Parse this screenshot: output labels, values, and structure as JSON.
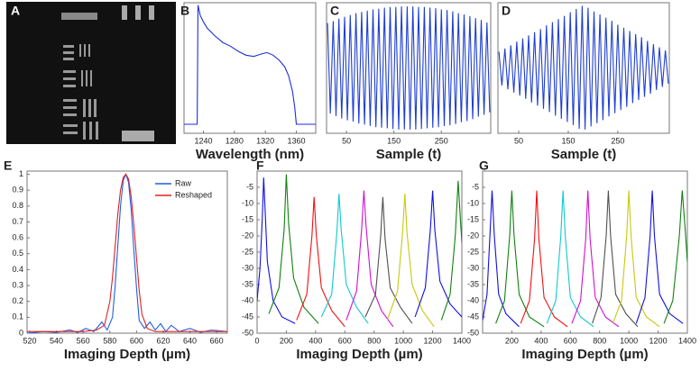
{
  "image_panel": {
    "label": "A"
  },
  "chart_data": [
    {
      "type": "line",
      "label": "B",
      "xlabel": "Wavelength (nm)",
      "xlim": [
        1215,
        1385
      ],
      "ylim": [
        0,
        1.02
      ],
      "xticks": [
        1240,
        1280,
        1320,
        1360
      ],
      "series": [
        {
          "color": "#1f2fd6",
          "x": [
            1215,
            1225,
            1232,
            1233,
            1236,
            1240,
            1245,
            1255,
            1265,
            1275,
            1285,
            1295,
            1305,
            1315,
            1322,
            1330,
            1338,
            1345,
            1350,
            1355,
            1358,
            1360,
            1370,
            1385
          ],
          "values": [
            0.07,
            0.07,
            0.07,
            1,
            0.92,
            0.87,
            0.82,
            0.76,
            0.71,
            0.68,
            0.64,
            0.61,
            0.6,
            0.62,
            0.63,
            0.61,
            0.57,
            0.52,
            0.45,
            0.33,
            0.2,
            0.07,
            0.07,
            0.07
          ]
        }
      ]
    },
    {
      "type": "line",
      "label": "C",
      "xlabel": "Sample (t)",
      "xlim": [
        8,
        354
      ],
      "ylim": [
        -1.06,
        1.06
      ],
      "xticks": [
        50,
        150,
        250
      ],
      "series": [
        {
          "color": "#1f3fd0",
          "x": [
            10,
            16,
            22,
            28,
            34,
            40,
            46,
            52,
            58,
            64,
            70,
            76,
            82,
            88,
            94,
            100,
            106,
            112,
            118,
            124,
            130,
            136,
            142,
            148,
            154,
            160,
            166,
            172,
            178,
            184,
            190,
            196,
            202,
            208,
            214,
            220,
            226,
            232,
            238,
            244,
            250,
            256,
            262,
            268,
            274,
            280,
            286,
            292,
            298,
            304,
            310,
            316,
            322,
            328,
            334,
            340,
            346,
            352
          ],
          "values": [
            0.73,
            -0.74,
            0.76,
            -0.78,
            0.8,
            -0.82,
            0.83,
            -0.85,
            0.86,
            -0.87,
            0.89,
            -0.9,
            0.91,
            -0.92,
            0.93,
            -0.94,
            0.95,
            -0.96,
            0.96,
            -0.97,
            0.98,
            -0.98,
            0.99,
            -0.99,
            0.99,
            -1,
            1,
            -1,
            1,
            -1,
            1,
            -1,
            0.99,
            -0.99,
            0.99,
            -0.98,
            0.98,
            -0.97,
            0.97,
            -0.96,
            0.95,
            -0.94,
            0.94,
            -0.93,
            0.92,
            -0.91,
            0.89,
            -0.88,
            0.87,
            -0.86,
            0.84,
            -0.83,
            0.81,
            -0.79,
            0.78,
            -0.76,
            0.74,
            -0.72
          ]
        }
      ]
    },
    {
      "type": "line",
      "label": "D",
      "xlabel": "Sample (t)",
      "xlim": [
        8,
        354
      ],
      "ylim": [
        -1.04,
        1.04
      ],
      "xticks": [
        50,
        150,
        250
      ],
      "series": [
        {
          "color": "#1f3fd0",
          "x": [
            10,
            16,
            22,
            28,
            34,
            40,
            46,
            52,
            58,
            64,
            70,
            76,
            82,
            88,
            94,
            100,
            106,
            112,
            118,
            124,
            130,
            136,
            142,
            148,
            154,
            160,
            166,
            172,
            178,
            184,
            190,
            196,
            202,
            208,
            214,
            220,
            226,
            232,
            238,
            244,
            250,
            256,
            262,
            268,
            274,
            280,
            286,
            292,
            298,
            304,
            310,
            316,
            322,
            328,
            334,
            340,
            346,
            352
          ],
          "values": [
            0.26,
            -0.28,
            0.31,
            -0.34,
            0.36,
            -0.39,
            0.42,
            -0.44,
            0.47,
            -0.49,
            0.52,
            -0.55,
            0.57,
            -0.6,
            0.62,
            -0.65,
            0.68,
            -0.7,
            0.73,
            -0.76,
            0.78,
            -0.81,
            0.83,
            -0.86,
            0.89,
            -0.91,
            0.94,
            -0.97,
            0.99,
            -0.98,
            0.96,
            -0.93,
            0.9,
            -0.88,
            0.85,
            -0.83,
            0.8,
            -0.77,
            0.75,
            -0.72,
            0.69,
            -0.67,
            0.64,
            -0.62,
            0.59,
            -0.56,
            0.54,
            -0.51,
            0.49,
            -0.46,
            0.43,
            -0.41,
            0.38,
            -0.35,
            0.33,
            -0.3,
            0.28,
            -0.25
          ]
        }
      ]
    },
    {
      "type": "line",
      "label": "E",
      "xlabel": "Imaging Depth (µm)",
      "xlim": [
        518,
        668
      ],
      "ylim": [
        0,
        1.02
      ],
      "xticks": [
        520,
        540,
        560,
        580,
        600,
        620,
        640,
        660
      ],
      "yticks": [
        0,
        0.1,
        0.2,
        0.3,
        0.4,
        0.5,
        0.6,
        0.7,
        0.8,
        0.9,
        1
      ],
      "legend": "upper right",
      "series": [
        {
          "name": "Raw",
          "color": "#1f5fe0",
          "x": [
            518,
            530,
            540,
            550,
            556,
            562,
            568,
            574,
            578,
            582,
            584,
            586,
            588,
            590,
            592,
            594,
            596,
            598,
            600,
            602,
            606,
            610,
            614,
            618,
            622,
            626,
            632,
            640,
            648,
            656,
            668
          ],
          "values": [
            0,
            0.01,
            0.005,
            0.02,
            0.005,
            0.03,
            0.01,
            0.07,
            0.02,
            0.1,
            0.3,
            0.55,
            0.8,
            0.96,
            1,
            0.95,
            0.78,
            0.52,
            0.28,
            0.08,
            0.03,
            0.07,
            0.02,
            0.06,
            0.01,
            0.05,
            0.01,
            0.03,
            0.005,
            0.02,
            0.01
          ]
        },
        {
          "name": "Reshaped",
          "color": "#e02020",
          "x": [
            518,
            560,
            570,
            576,
            580,
            582,
            584,
            586,
            588,
            590,
            592,
            594,
            596,
            598,
            600,
            602,
            604,
            608,
            614,
            668
          ],
          "values": [
            0.01,
            0.01,
            0.02,
            0.05,
            0.2,
            0.35,
            0.55,
            0.75,
            0.9,
            0.98,
            1,
            0.97,
            0.86,
            0.68,
            0.47,
            0.27,
            0.12,
            0.03,
            0.01,
            0.01
          ]
        }
      ]
    },
    {
      "type": "line",
      "label": "F",
      "xlabel": "Imaging Depth (µm)",
      "xlim": [
        0,
        1400
      ],
      "ylim": [
        -50,
        0
      ],
      "xticks": [
        0,
        200,
        400,
        600,
        800,
        1000,
        1200,
        1400
      ],
      "yticks": [
        -5,
        -10,
        -15,
        -20,
        -25,
        -30,
        -35,
        -40,
        -45,
        -50
      ],
      "series": [
        {
          "color": "#1010e0",
          "x": [
            0,
            20,
            35,
            45,
            55,
            70,
            110,
            170,
            260
          ],
          "values": [
            -40,
            -30,
            -15,
            -2,
            -12,
            -28,
            -40,
            -45,
            -47
          ]
        },
        {
          "color": "#108010",
          "x": [
            80,
            150,
            185,
            200,
            215,
            250,
            320,
            420
          ],
          "values": [
            -44,
            -36,
            -18,
            -1,
            -16,
            -33,
            -42,
            -47
          ]
        },
        {
          "color": "#f01010",
          "x": [
            270,
            340,
            375,
            390,
            405,
            440,
            510,
            600
          ],
          "values": [
            -46,
            -38,
            -20,
            -8,
            -20,
            -36,
            -43,
            -48
          ]
        },
        {
          "color": "#10c8d0",
          "x": [
            440,
            510,
            545,
            560,
            575,
            610,
            680,
            760
          ],
          "values": [
            -45,
            -38,
            -19,
            -7,
            -18,
            -35,
            -42,
            -47
          ]
        },
        {
          "color": "#d010d0",
          "x": [
            610,
            680,
            715,
            730,
            745,
            780,
            850,
            930
          ],
          "values": [
            -46,
            -37,
            -18,
            -6,
            -17,
            -35,
            -43,
            -48
          ]
        },
        {
          "color": "#505050",
          "x": [
            740,
            810,
            845,
            860,
            875,
            910,
            980,
            1060
          ],
          "values": [
            -45,
            -38,
            -20,
            -8,
            -21,
            -36,
            -42,
            -47
          ]
        },
        {
          "color": "#c8c810",
          "x": [
            890,
            960,
            995,
            1010,
            1025,
            1060,
            1130,
            1210
          ],
          "values": [
            -46,
            -37,
            -19,
            -7,
            -19,
            -35,
            -43,
            -48
          ]
        },
        {
          "color": "#1010e0",
          "x": [
            1080,
            1150,
            1185,
            1200,
            1215,
            1250,
            1320,
            1400
          ],
          "values": [
            -45,
            -36,
            -18,
            -6,
            -18,
            -34,
            -41,
            -45
          ]
        },
        {
          "color": "#108010",
          "x": [
            1260,
            1320,
            1355,
            1375,
            1390,
            1400
          ],
          "values": [
            -46,
            -38,
            -20,
            -3,
            -15,
            -22
          ]
        }
      ]
    },
    {
      "type": "line",
      "label": "G",
      "xlabel": "Imaging Depth (µm)",
      "xlim": [
        0,
        1400
      ],
      "ylim": [
        -50,
        0
      ],
      "xticks": [
        200,
        400,
        600,
        800,
        1000,
        1200,
        1400
      ],
      "yticks": [
        -5,
        -10,
        -15,
        -20,
        -25,
        -30,
        -35,
        -40,
        -45,
        -50
      ],
      "series": [
        {
          "color": "#1010e0",
          "x": [
            0,
            30,
            50,
            65,
            80,
            110,
            160,
            250
          ],
          "values": [
            -46,
            -38,
            -20,
            -6,
            -20,
            -38,
            -44,
            -48
          ]
        },
        {
          "color": "#108010",
          "x": [
            90,
            150,
            185,
            200,
            215,
            250,
            320,
            420
          ],
          "values": [
            -47,
            -40,
            -20,
            -6,
            -20,
            -38,
            -45,
            -48
          ]
        },
        {
          "color": "#f01010",
          "x": [
            260,
            320,
            355,
            370,
            385,
            420,
            490,
            580
          ],
          "values": [
            -47,
            -40,
            -21,
            -6,
            -21,
            -39,
            -45,
            -48
          ]
        },
        {
          "color": "#10c8d0",
          "x": [
            440,
            500,
            535,
            550,
            565,
            600,
            670,
            760
          ],
          "values": [
            -47,
            -40,
            -20,
            -6,
            -20,
            -39,
            -45,
            -48
          ]
        },
        {
          "color": "#d010d0",
          "x": [
            610,
            670,
            705,
            720,
            735,
            770,
            840,
            930
          ],
          "values": [
            -47,
            -40,
            -21,
            -6,
            -21,
            -39,
            -45,
            -48
          ]
        },
        {
          "color": "#505050",
          "x": [
            750,
            810,
            845,
            860,
            875,
            910,
            980,
            1060
          ],
          "values": [
            -47,
            -39,
            -20,
            -6,
            -20,
            -38,
            -44,
            -48
          ]
        },
        {
          "color": "#c8c810",
          "x": [
            890,
            950,
            985,
            1000,
            1015,
            1050,
            1120,
            1210
          ],
          "values": [
            -47,
            -40,
            -20,
            -6,
            -20,
            -39,
            -45,
            -48
          ]
        },
        {
          "color": "#1010e0",
          "x": [
            1050,
            1110,
            1145,
            1160,
            1175,
            1210,
            1280,
            1370
          ],
          "values": [
            -47,
            -39,
            -20,
            -6,
            -20,
            -38,
            -44,
            -47
          ]
        },
        {
          "color": "#108010",
          "x": [
            1240,
            1300,
            1345,
            1365,
            1385,
            1400
          ],
          "values": [
            -47,
            -40,
            -20,
            -6,
            -18,
            -28
          ]
        }
      ]
    }
  ]
}
